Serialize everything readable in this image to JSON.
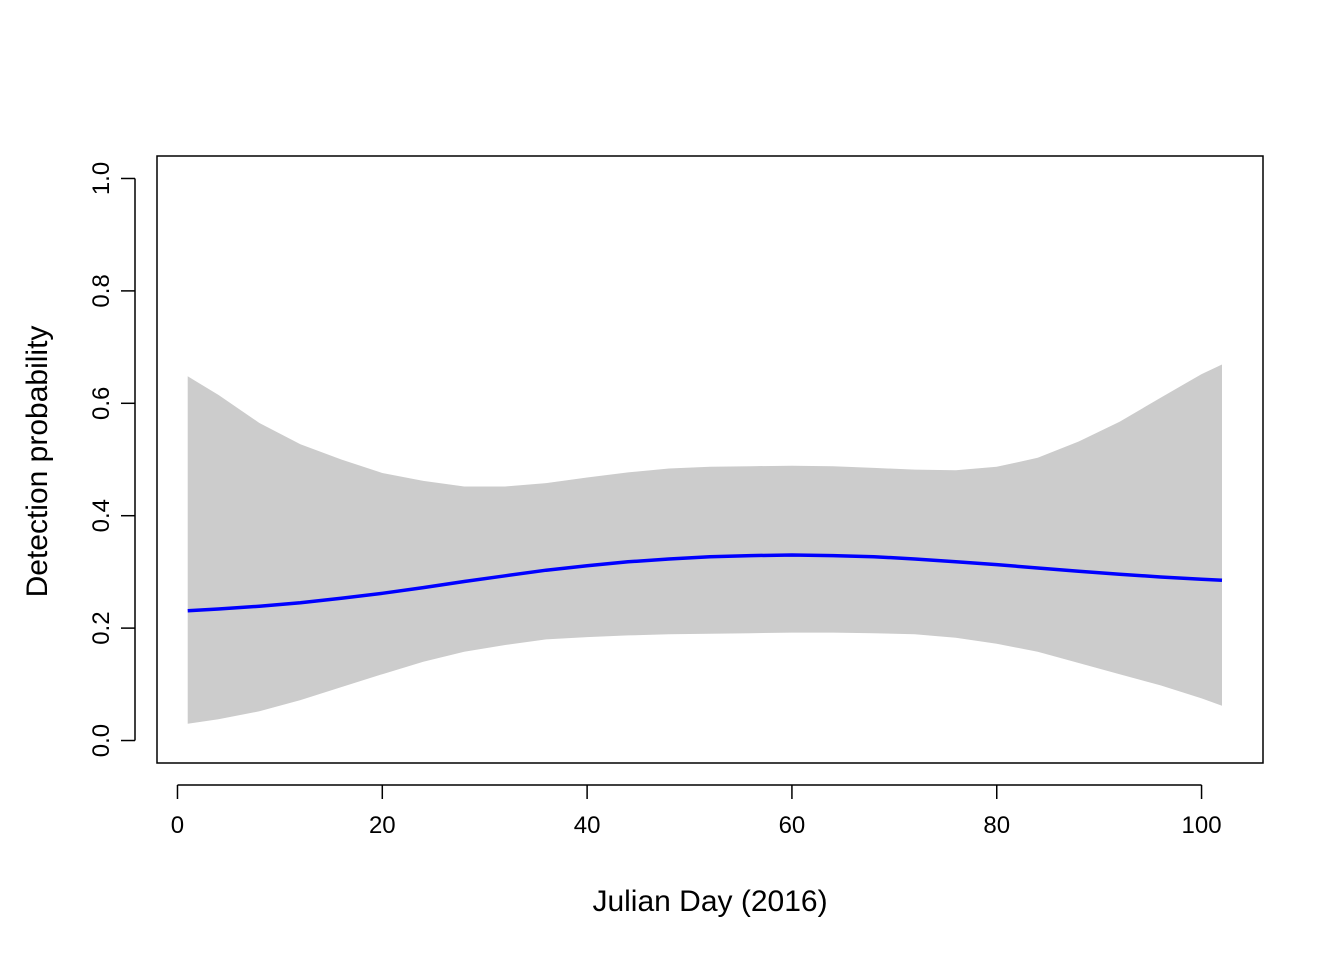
{
  "chart_data": {
    "type": "line",
    "title": "",
    "xlabel": "Julian Day (2016)",
    "ylabel": "Detection probability",
    "xlim": [
      -2,
      106
    ],
    "ylim": [
      -0.04,
      1.04
    ],
    "xticks": [
      0,
      20,
      40,
      60,
      80,
      100
    ],
    "yticks": [
      0.0,
      0.2,
      0.4,
      0.6,
      0.8,
      1.0
    ],
    "xtick_labels": [
      "0",
      "20",
      "40",
      "60",
      "80",
      "100"
    ],
    "ytick_labels": [
      "0.0",
      "0.2",
      "0.4",
      "0.6",
      "0.8",
      "1.0"
    ],
    "grid": false,
    "colors": {
      "line": "#0000ff",
      "ribbon": "#cccccc",
      "frame": "#000000"
    },
    "series": [
      {
        "x": [
          1,
          4,
          8,
          12,
          16,
          20,
          24,
          28,
          32,
          36,
          40,
          44,
          48,
          52,
          56,
          60,
          64,
          68,
          72,
          76,
          80,
          84,
          88,
          92,
          96,
          100,
          102
        ],
        "y": [
          0.231,
          0.234,
          0.239,
          0.245,
          0.253,
          0.262,
          0.272,
          0.283,
          0.293,
          0.303,
          0.311,
          0.318,
          0.323,
          0.327,
          0.329,
          0.33,
          0.329,
          0.327,
          0.323,
          0.318,
          0.313,
          0.307,
          0.301,
          0.296,
          0.291,
          0.287,
          0.285
        ],
        "lower": [
          0.03,
          0.038,
          0.052,
          0.072,
          0.095,
          0.118,
          0.14,
          0.158,
          0.17,
          0.18,
          0.184,
          0.187,
          0.189,
          0.19,
          0.191,
          0.192,
          0.192,
          0.191,
          0.189,
          0.183,
          0.172,
          0.158,
          0.138,
          0.118,
          0.098,
          0.075,
          0.062
        ],
        "upper": [
          0.648,
          0.615,
          0.565,
          0.527,
          0.5,
          0.476,
          0.462,
          0.452,
          0.452,
          0.458,
          0.468,
          0.477,
          0.484,
          0.487,
          0.488,
          0.489,
          0.488,
          0.485,
          0.482,
          0.481,
          0.487,
          0.503,
          0.532,
          0.567,
          0.61,
          0.652,
          0.669
        ]
      }
    ]
  }
}
